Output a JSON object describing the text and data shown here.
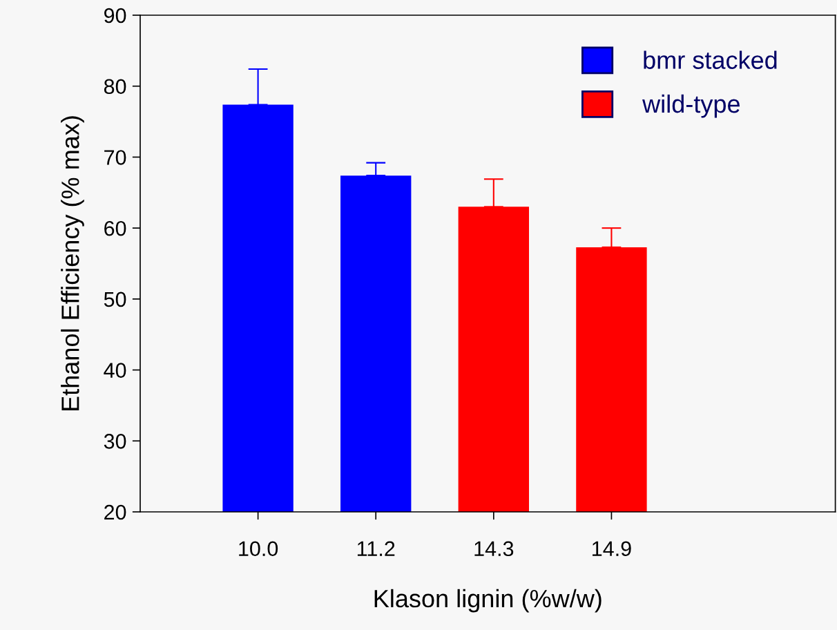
{
  "chart_data": {
    "type": "bar",
    "xlabel": "Klason lignin (%w/w)",
    "ylabel": "Ethanol Efficiency (% max)",
    "categories": [
      "10.0",
      "11.2",
      "14.3",
      "14.9"
    ],
    "series": [
      {
        "name": "bmr stacked",
        "color": "#0000ff",
        "values": [
          77.4,
          67.4,
          null,
          null
        ],
        "errors": [
          [
            77.4,
            82.4
          ],
          [
            67.4,
            69.2
          ],
          null,
          null
        ]
      },
      {
        "name": "wild-type",
        "color": "#ff0000",
        "values": [
          null,
          null,
          63.0,
          57.3
        ],
        "errors": [
          null,
          null,
          [
            63.0,
            66.9
          ],
          [
            57.3,
            60.0
          ]
        ]
      }
    ],
    "ylim": [
      20,
      90
    ],
    "yticks": [
      20,
      30,
      40,
      50,
      60,
      70,
      80,
      90
    ],
    "grid": false,
    "legend": "top right"
  }
}
